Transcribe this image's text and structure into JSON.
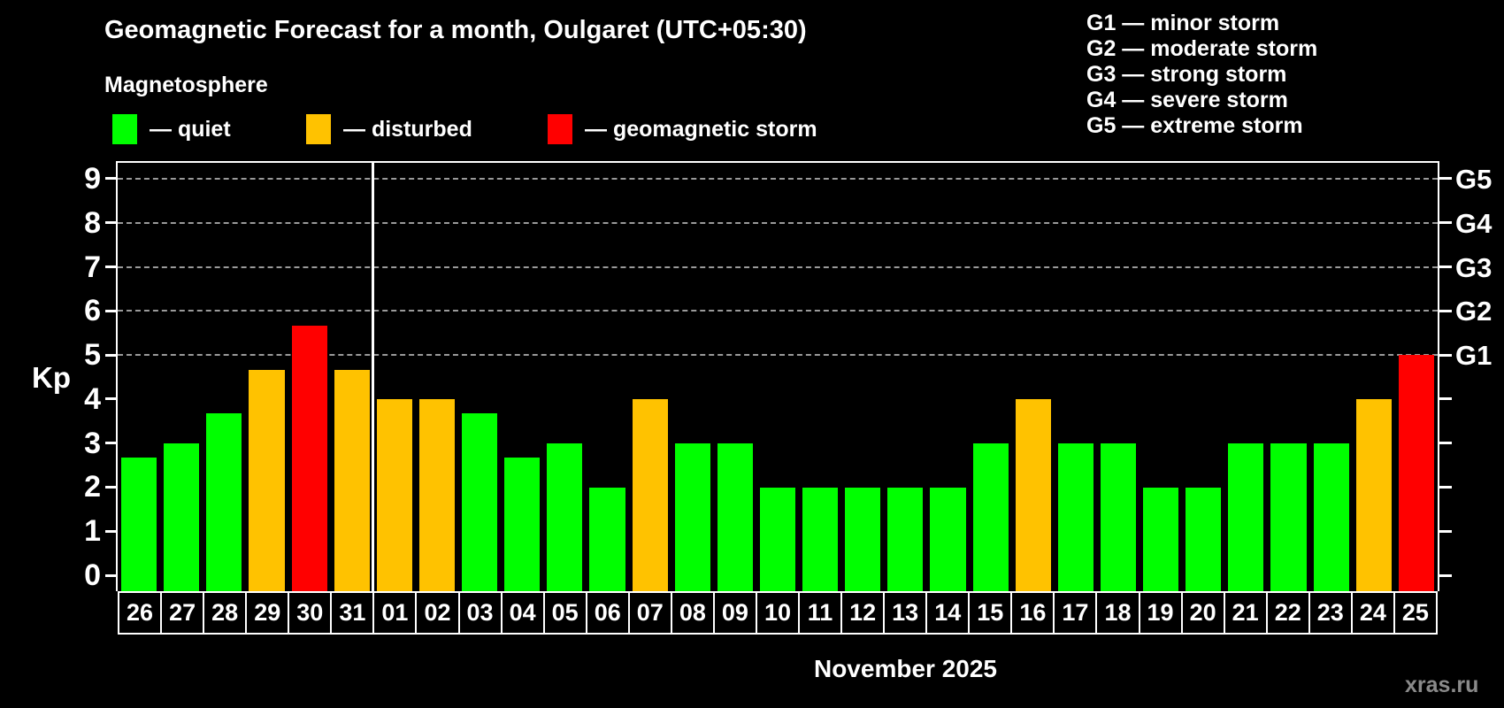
{
  "title": "Geomagnetic Forecast for a month, Oulgaret (UTC+05:30)",
  "subtitle": "Magnetosphere",
  "legend": {
    "items": [
      {
        "key": "quiet",
        "label": "— quiet",
        "color": "#00ff00",
        "x": 127
      },
      {
        "key": "disturbed",
        "label": "— disturbed",
        "color": "#ffc200",
        "x": 346
      },
      {
        "key": "storm",
        "label": "— geomagnetic storm",
        "color": "#ff0000",
        "x": 619
      }
    ]
  },
  "g_scale_legend": [
    "G1 — minor storm",
    "G2 — moderate storm",
    "G3 — strong storm",
    "G4 — severe storm",
    "G5 — extreme storm"
  ],
  "month_label": "November 2025",
  "watermark": "xras.ru",
  "chart_data": {
    "type": "bar",
    "title": "Geomagnetic Forecast for a month, Oulgaret (UTC+05:30)",
    "ylabel": "Kp",
    "xlabel": "November 2025",
    "ylim": [
      -0.36,
      9.36
    ],
    "yticks": [
      0,
      1,
      2,
      3,
      4,
      5,
      6,
      7,
      8,
      9
    ],
    "gridlines_at": [
      5,
      6,
      7,
      8,
      9
    ],
    "grid_on": true,
    "legend_position": "top-left",
    "right_axis": [
      {
        "kp": 5,
        "label": "G1"
      },
      {
        "kp": 6,
        "label": "G2"
      },
      {
        "kp": 7,
        "label": "G3"
      },
      {
        "kp": 8,
        "label": "G4"
      },
      {
        "kp": 9,
        "label": "G5"
      }
    ],
    "categories": [
      "26",
      "27",
      "28",
      "29",
      "30",
      "31",
      "01",
      "02",
      "03",
      "04",
      "05",
      "06",
      "07",
      "08",
      "09",
      "10",
      "11",
      "12",
      "13",
      "14",
      "15",
      "16",
      "17",
      "18",
      "19",
      "20",
      "21",
      "22",
      "23",
      "24",
      "25"
    ],
    "values": [
      2.67,
      3,
      3.67,
      4.67,
      5.67,
      4.67,
      4,
      4,
      3.67,
      2.67,
      3,
      2,
      4,
      3,
      3,
      2,
      2,
      2,
      2,
      2,
      3,
      4,
      3,
      3,
      2,
      2,
      3,
      3,
      3,
      4,
      5
    ],
    "status": [
      "quiet",
      "quiet",
      "quiet",
      "disturbed",
      "storm",
      "disturbed",
      "disturbed",
      "disturbed",
      "quiet",
      "quiet",
      "quiet",
      "quiet",
      "disturbed",
      "quiet",
      "quiet",
      "quiet",
      "quiet",
      "quiet",
      "quiet",
      "quiet",
      "quiet",
      "disturbed",
      "quiet",
      "quiet",
      "quiet",
      "quiet",
      "quiet",
      "quiet",
      "quiet",
      "disturbed",
      "storm"
    ],
    "colors": {
      "quiet": "#00ff00",
      "disturbed": "#ffc200",
      "storm": "#ff0000"
    },
    "grid_color": "#9a9a9a",
    "divider_after_index": 5
  }
}
